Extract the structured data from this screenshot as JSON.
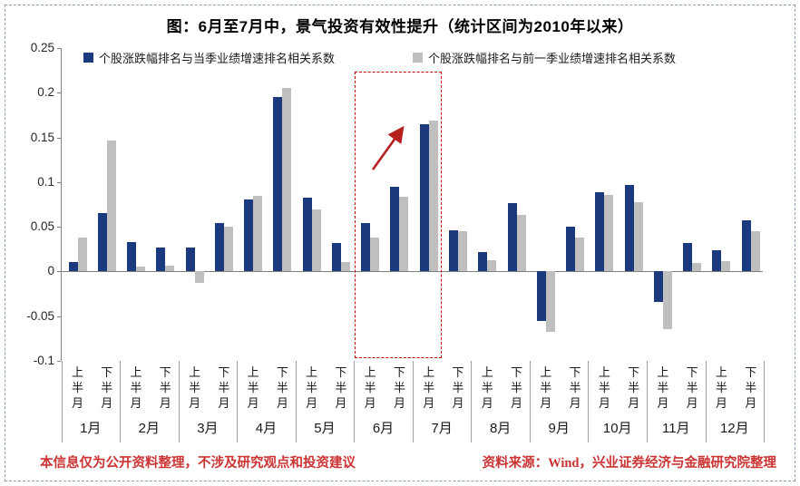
{
  "title": "图：6月至7月中，景气投资有效性提升（统计区间为2010年以来）",
  "legend": [
    {
      "label": "个股涨跌幅排名与当季业绩增速排名相关系数",
      "color": "#1b3a7d"
    },
    {
      "label": "个股涨跌幅排名与前一季业绩增速排名相关系数",
      "color": "#bfbfbf"
    }
  ],
  "footer": {
    "left": "本信息仅为公开资料整理，不涉及研究观点和投资建议",
    "right": "资料来源：Wind，兴业证券经济与金融研究院整理"
  },
  "chart_data": {
    "type": "bar",
    "title": "图：6月至7月中，景气投资有效性提升（统计区间为2010年以来）",
    "months": [
      "1月",
      "2月",
      "3月",
      "4月",
      "5月",
      "6月",
      "7月",
      "8月",
      "9月",
      "10月",
      "11月",
      "12月"
    ],
    "half_month_pattern": [
      "上半月",
      "下半月"
    ],
    "categories": [
      "1月上半月",
      "1月下半月",
      "2月上半月",
      "2月下半月",
      "3月上半月",
      "3月下半月",
      "4月上半月",
      "4月下半月",
      "5月上半月",
      "5月下半月",
      "6月上半月",
      "6月下半月",
      "7月上半月",
      "7月下半月",
      "8月上半月",
      "8月下半月",
      "9月上半月",
      "9月下半月",
      "10月上半月",
      "10月下半月",
      "11月上半月",
      "11月下半月",
      "12月上半月",
      "12月下半月"
    ],
    "series": [
      {
        "name": "个股涨跌幅排名与当季业绩增速排名相关系数",
        "color": "#1b3a7d",
        "values": [
          0.011,
          0.065,
          0.033,
          0.027,
          0.027,
          0.054,
          0.081,
          0.195,
          0.083,
          0.032,
          0.054,
          0.095,
          0.165,
          0.046,
          0.022,
          0.077,
          -0.055,
          0.05,
          0.089,
          0.097,
          -0.034,
          0.032,
          0.024,
          0.057
        ]
      },
      {
        "name": "个股涨跌幅排名与前一季业绩增速排名相关系数",
        "color": "#bfbfbf",
        "values": [
          0.038,
          0.147,
          0.006,
          0.007,
          -0.013,
          0.05,
          0.085,
          0.205,
          0.069,
          0.011,
          0.038,
          0.084,
          0.169,
          0.045,
          0.013,
          0.063,
          -0.068,
          0.038,
          0.086,
          0.078,
          -0.065,
          0.01,
          0.012,
          0.045
        ]
      }
    ],
    "ylim": [
      -0.1,
      0.25
    ],
    "yticks": [
      0.25,
      0.2,
      0.15,
      0.1,
      0.05,
      0,
      -0.05,
      -0.1
    ],
    "ytick_labels": [
      "0.25",
      "0.2",
      "0.15",
      "0.1",
      "0.05",
      "0",
      "-0.05",
      "-0.1"
    ],
    "grid": false,
    "legend_position": "top",
    "highlight": {
      "from_category": "6月上半月",
      "to_category": "7月上半月",
      "from_index": 10,
      "to_index": 12,
      "style": "red-dashed-rect",
      "color": "#c00000"
    },
    "annotation": {
      "type": "arrow",
      "direction": "up-right",
      "color": "#b42020"
    }
  }
}
